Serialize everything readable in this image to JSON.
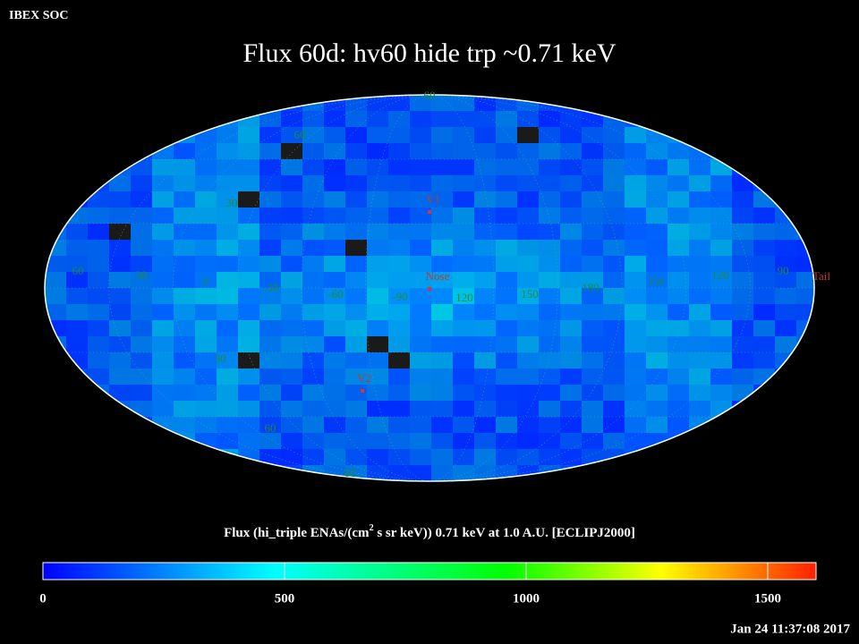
{
  "header": {
    "source": "IBEX SOC",
    "title": "Flux   60d: hv60 hide trp ~0.71 keV"
  },
  "map": {
    "grid_labels": [
      "60",
      "60",
      "30",
      "60",
      "30",
      "0",
      "-30",
      "-60",
      "-90",
      "120",
      "150",
      "180",
      "150",
      "120",
      "90",
      "30",
      "60",
      "60"
    ],
    "markers": [
      "V1",
      "Nose",
      "V2",
      "Tail"
    ]
  },
  "colorbar": {
    "label_parts": [
      "Flux (hi_triple ENAs/(cm",
      "2",
      " s sr keV))  0.71 keV at 1.0 A.U. [ECLIPJ2000]"
    ],
    "range": [
      0,
      1600
    ],
    "ticks": [
      0,
      500,
      1000,
      1500
    ]
  },
  "footer": {
    "timestamp": "Jan 24 11:37:08 2017"
  }
}
